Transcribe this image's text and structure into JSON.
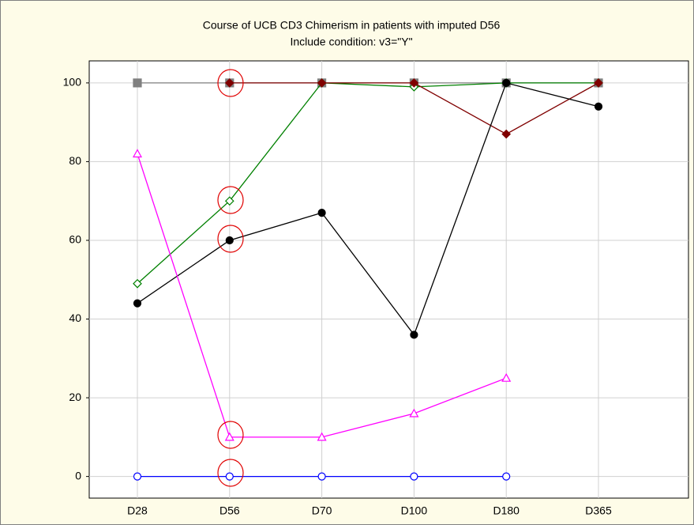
{
  "chart_data": {
    "type": "line",
    "title": "Course of UCB CD3 Chimerism in patients with imputed D56",
    "subtitle": "Include condition: v3=\"Y\"",
    "categories": [
      "D28",
      "D56",
      "D70",
      "D100",
      "D180",
      "D365"
    ],
    "ylim": [
      -5.5,
      105.6
    ],
    "yticks": [
      0,
      20,
      40,
      60,
      80,
      100
    ],
    "grid": true,
    "series": [
      {
        "color": "#808080",
        "marker": "square",
        "filled": true,
        "values": [
          100,
          100,
          100,
          100,
          100,
          100
        ]
      },
      {
        "color": "#008000",
        "marker": "diamond",
        "filled": false,
        "values": [
          49,
          70,
          100,
          99,
          100,
          100
        ]
      },
      {
        "color": "#800000",
        "marker": "diamond",
        "filled": true,
        "values": [
          null,
          100,
          100,
          100,
          87,
          100
        ]
      },
      {
        "color": "#000000",
        "marker": "circle",
        "filled": true,
        "values": [
          44,
          60,
          67,
          36,
          100,
          94
        ]
      },
      {
        "color": "#ff00ff",
        "marker": "triangle",
        "filled": false,
        "values": [
          82,
          10,
          10,
          16,
          25,
          null
        ]
      },
      {
        "color": "#0000ff",
        "marker": "circle",
        "filled": false,
        "values": [
          0,
          0,
          0,
          0,
          0,
          null
        ]
      }
    ]
  }
}
